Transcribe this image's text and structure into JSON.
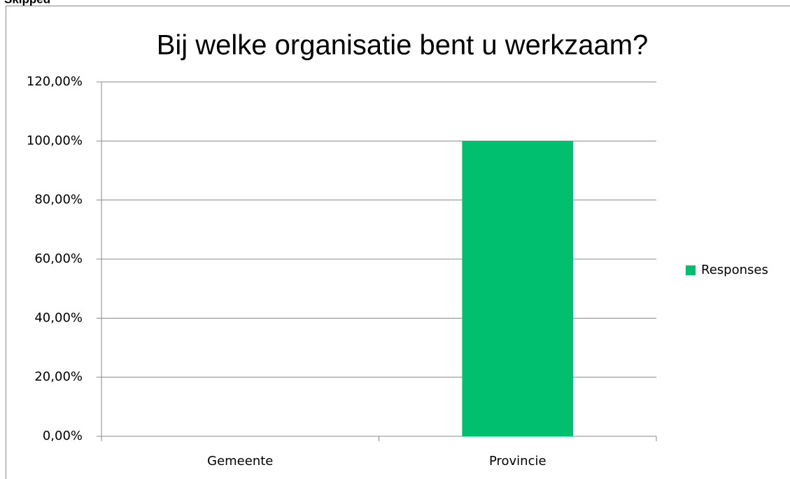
{
  "header": {
    "text": "Skipped"
  },
  "chart_data": {
    "type": "bar",
    "title": "Bij welke organisatie bent u werkzaam?",
    "categories": [
      "Gemeente",
      "Provincie"
    ],
    "series": [
      {
        "name": "Responses",
        "color": "#00bf6f",
        "values": [
          0,
          100
        ]
      }
    ],
    "ylim": [
      0,
      120
    ],
    "yticks": [
      {
        "value": 0,
        "label": "0,00%"
      },
      {
        "value": 20,
        "label": "20,00%"
      },
      {
        "value": 40,
        "label": "40,00%"
      },
      {
        "value": 60,
        "label": "60,00%"
      },
      {
        "value": 80,
        "label": "80,00%"
      },
      {
        "value": 100,
        "label": "100,00%"
      },
      {
        "value": 120,
        "label": "120,00%"
      }
    ],
    "grid": true,
    "legend": "right"
  }
}
